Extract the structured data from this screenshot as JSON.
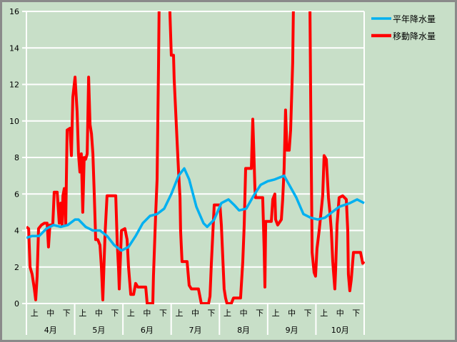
{
  "chart_data": {
    "type": "line",
    "title": "",
    "xlabel": "",
    "ylabel": "",
    "xlim": [
      0,
      214
    ],
    "ylim": [
      0,
      16
    ],
    "yticks": [
      0,
      2,
      4,
      6,
      8,
      10,
      12,
      14,
      16
    ],
    "grid": true,
    "legend_position": "top-right",
    "period_labels": [
      "上",
      "中",
      "下"
    ],
    "months": [
      "4月",
      "5月",
      "6月",
      "7月",
      "8月",
      "9月",
      "10月"
    ],
    "series": [
      {
        "name": "平年降水量",
        "color": "#00b0f0",
        "points": [
          [
            0,
            3.6
          ],
          [
            3.6,
            3.7
          ],
          [
            8.1,
            3.7
          ],
          [
            12.7,
            4.1
          ],
          [
            17.2,
            4.3
          ],
          [
            21.7,
            4.2
          ],
          [
            26.2,
            4.3
          ],
          [
            30.8,
            4.6
          ],
          [
            33,
            4.6
          ],
          [
            37.5,
            4.2
          ],
          [
            42.1,
            4.0
          ],
          [
            46.6,
            4.0
          ],
          [
            51.1,
            3.7
          ],
          [
            55.6,
            3.2
          ],
          [
            60.2,
            2.9
          ],
          [
            64.7,
            3.1
          ],
          [
            69.2,
            3.7
          ],
          [
            73.7,
            4.4
          ],
          [
            78.3,
            4.8
          ],
          [
            82.8,
            4.9
          ],
          [
            87.3,
            5.2
          ],
          [
            91.8,
            6.0
          ],
          [
            96.4,
            7.0
          ],
          [
            100,
            7.4
          ],
          [
            103.1,
            6.8
          ],
          [
            107.7,
            5.3
          ],
          [
            112.2,
            4.4
          ],
          [
            114.5,
            4.2
          ],
          [
            119,
            4.6
          ],
          [
            123.5,
            5.5
          ],
          [
            128,
            5.7
          ],
          [
            131.6,
            5.4
          ],
          [
            134.8,
            5.1
          ],
          [
            139.3,
            5.2
          ],
          [
            143.9,
            5.9
          ],
          [
            148.4,
            6.5
          ],
          [
            152.9,
            6.7
          ],
          [
            157.4,
            6.8
          ],
          [
            163.3,
            7.0
          ],
          [
            166.5,
            6.5
          ],
          [
            171,
            5.8
          ],
          [
            175.5,
            4.9
          ],
          [
            180.1,
            4.7
          ],
          [
            184.6,
            4.6
          ],
          [
            189.1,
            4.7
          ],
          [
            193.6,
            5.0
          ],
          [
            198.2,
            5.3
          ],
          [
            204.9,
            5.5
          ],
          [
            209.5,
            5.7
          ],
          [
            214,
            5.5
          ]
        ]
      },
      {
        "name": "移動降水量",
        "color": "#ff0000",
        "points": [
          [
            0,
            4.2
          ],
          [
            1.4,
            4.1
          ],
          [
            2.3,
            2.0
          ],
          [
            3.6,
            1.6
          ],
          [
            5,
            0.8
          ],
          [
            5.9,
            0.2
          ],
          [
            6.8,
            1.5
          ],
          [
            7.7,
            4.1
          ],
          [
            9.5,
            4.3
          ],
          [
            11.3,
            4.4
          ],
          [
            13.1,
            4.4
          ],
          [
            14,
            3.1
          ],
          [
            14.9,
            4.3
          ],
          [
            16.7,
            4.3
          ],
          [
            17.6,
            6.1
          ],
          [
            19.5,
            6.1
          ],
          [
            20.8,
            4.4
          ],
          [
            21.7,
            5.5
          ],
          [
            22.6,
            4.3
          ],
          [
            23.1,
            5.9
          ],
          [
            24,
            6.3
          ],
          [
            24.9,
            4.3
          ],
          [
            25.8,
            9.5
          ],
          [
            27.6,
            9.6
          ],
          [
            28.5,
            8.1
          ],
          [
            29.4,
            11.3
          ],
          [
            30.8,
            12.4
          ],
          [
            32.1,
            10.5
          ],
          [
            33,
            8.2
          ],
          [
            33.9,
            7.2
          ],
          [
            34.8,
            8.2
          ],
          [
            35.7,
            5.0
          ],
          [
            36.6,
            8.0
          ],
          [
            37.5,
            7.9
          ],
          [
            38.5,
            8.2
          ],
          [
            39.4,
            12.4
          ],
          [
            40.3,
            9.8
          ],
          [
            41.2,
            9.3
          ],
          [
            42.1,
            8.2
          ],
          [
            43,
            6.0
          ],
          [
            43.9,
            3.5
          ],
          [
            45.2,
            3.5
          ],
          [
            46.6,
            3.2
          ],
          [
            47.5,
            2.0
          ],
          [
            48.4,
            0.2
          ],
          [
            49.8,
            3.8
          ],
          [
            51.1,
            5.9
          ],
          [
            54.7,
            5.9
          ],
          [
            56.6,
            5.9
          ],
          [
            57.5,
            3.4
          ],
          [
            58.4,
            1.8
          ],
          [
            58.8,
            0.8
          ],
          [
            60.2,
            4.0
          ],
          [
            62.4,
            4.1
          ],
          [
            63.8,
            3.5
          ],
          [
            64.7,
            2.0
          ],
          [
            66.1,
            0.5
          ],
          [
            67.9,
            0.5
          ],
          [
            69.2,
            1.1
          ],
          [
            70.6,
            0.9
          ],
          [
            73.7,
            0.9
          ],
          [
            75.6,
            0.9
          ],
          [
            76.5,
            0.0
          ],
          [
            80.1,
            0.0
          ],
          [
            80.5,
            1.5
          ],
          [
            81.9,
            4.9
          ],
          [
            82.8,
            6.8
          ],
          [
            83.7,
            13.0
          ],
          [
            84.1,
            16.5
          ],
          [
            90,
            16.5
          ],
          [
            90.9,
            16.0
          ],
          [
            91.8,
            13.6
          ],
          [
            93.2,
            13.6
          ],
          [
            93.6,
            12.3
          ],
          [
            95.5,
            8.8
          ],
          [
            96.4,
            7.2
          ],
          [
            97.3,
            5.8
          ],
          [
            97.7,
            4.0
          ],
          [
            98.6,
            2.3
          ],
          [
            101.8,
            2.3
          ],
          [
            103.1,
            1.0
          ],
          [
            104.5,
            0.8
          ],
          [
            109,
            0.8
          ],
          [
            109.9,
            0.4
          ],
          [
            110.8,
            0.0
          ],
          [
            115.4,
            0.0
          ],
          [
            116.3,
            0.4
          ],
          [
            117.2,
            2.2
          ],
          [
            119,
            5.4
          ],
          [
            122.6,
            5.4
          ],
          [
            123.5,
            4.3
          ],
          [
            125.3,
            0.8
          ],
          [
            126.2,
            0.3
          ],
          [
            127.1,
            0.0
          ],
          [
            129.8,
            0.0
          ],
          [
            131.2,
            0.3
          ],
          [
            134.4,
            0.3
          ],
          [
            135.7,
            0.3
          ],
          [
            137.1,
            2.3
          ],
          [
            138,
            4.3
          ],
          [
            138.9,
            7.4
          ],
          [
            142.5,
            7.4
          ],
          [
            143.4,
            10.1
          ],
          [
            143.9,
            8.8
          ],
          [
            144.8,
            6.3
          ],
          [
            145.2,
            5.8
          ],
          [
            148.4,
            5.8
          ],
          [
            149.7,
            5.8
          ],
          [
            150.6,
            3.0
          ],
          [
            151.1,
            0.9
          ],
          [
            151.6,
            4.5
          ],
          [
            152.9,
            4.5
          ],
          [
            155.2,
            4.5
          ],
          [
            156.1,
            5.7
          ],
          [
            157.4,
            6.0
          ],
          [
            157.9,
            4.6
          ],
          [
            159.2,
            4.3
          ],
          [
            161.5,
            4.6
          ],
          [
            162.4,
            5.7
          ],
          [
            163.3,
            7.4
          ],
          [
            164.2,
            10.6
          ],
          [
            165.1,
            8.4
          ],
          [
            166.5,
            8.4
          ],
          [
            167.4,
            9.5
          ],
          [
            168.7,
            13.2
          ],
          [
            169.2,
            16.5
          ],
          [
            179.6,
            16.5
          ],
          [
            180.1,
            11.2
          ],
          [
            181,
            2.8
          ],
          [
            182.3,
            1.7
          ],
          [
            183.2,
            1.5
          ],
          [
            184.1,
            3.0
          ],
          [
            185.5,
            4.0
          ],
          [
            186.9,
            5.2
          ],
          [
            187.7,
            5.9
          ],
          [
            188.6,
            8.1
          ],
          [
            190,
            7.9
          ],
          [
            191.4,
            5.8
          ],
          [
            192.3,
            5.0
          ],
          [
            193.2,
            4.0
          ],
          [
            194.1,
            2.3
          ],
          [
            195.4,
            0.8
          ],
          [
            195.9,
            1.8
          ],
          [
            196.8,
            4.3
          ],
          [
            198.1,
            5.8
          ],
          [
            200.4,
            5.9
          ],
          [
            202.7,
            5.7
          ],
          [
            203.6,
            4.0
          ],
          [
            204,
            1.6
          ],
          [
            204.9,
            0.7
          ],
          [
            205.8,
            1.3
          ],
          [
            207.2,
            2.8
          ],
          [
            209.5,
            2.8
          ],
          [
            211.7,
            2.8
          ],
          [
            213.1,
            2.2
          ],
          [
            214,
            2.3
          ]
        ]
      }
    ]
  }
}
